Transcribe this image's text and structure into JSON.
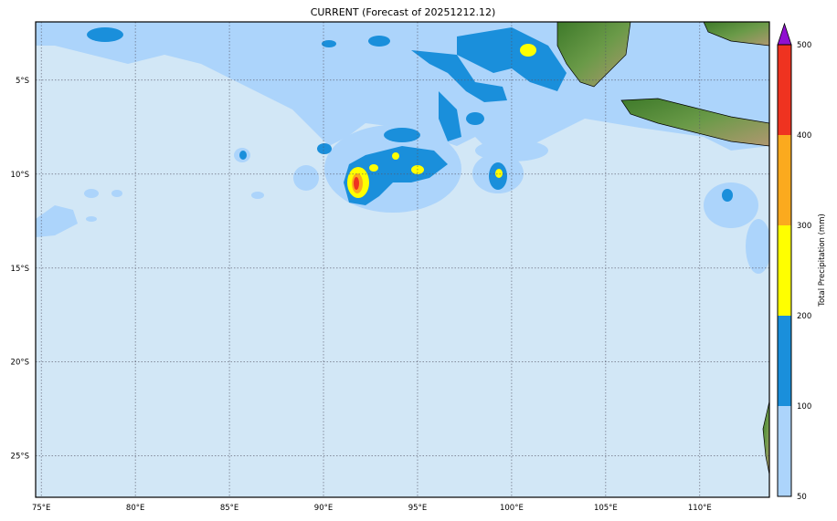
{
  "title": "CURRENT (Forecast of 20251212.12)",
  "map": {
    "lon_range": [
      74.7,
      113.7
    ],
    "lat_range": [
      -27.2,
      -1.9
    ],
    "lon_ticks": [
      {
        "value": 75,
        "label": "75°E"
      },
      {
        "value": 80,
        "label": "80°E"
      },
      {
        "value": 85,
        "label": "85°E"
      },
      {
        "value": 90,
        "label": "90°E"
      },
      {
        "value": 95,
        "label": "95°E"
      },
      {
        "value": 100,
        "label": "100°E"
      },
      {
        "value": 105,
        "label": "105°E"
      },
      {
        "value": 110,
        "label": "110°E"
      }
    ],
    "lat_ticks": [
      {
        "value": -5,
        "label": "5°S"
      },
      {
        "value": -10,
        "label": "10°S"
      },
      {
        "value": -15,
        "label": "15°S"
      },
      {
        "value": -20,
        "label": "20°S"
      },
      {
        "value": -25,
        "label": "25°S"
      }
    ],
    "gridlines": true,
    "ocean_color": "#d2e7f6"
  },
  "colorbar": {
    "label": "Total Precipitation (mm)",
    "levels": [
      {
        "value": 50,
        "label": "50"
      },
      {
        "value": 100,
        "label": "100"
      },
      {
        "value": 200,
        "label": "200"
      },
      {
        "value": 300,
        "label": "300"
      },
      {
        "value": 400,
        "label": "400"
      },
      {
        "value": 500,
        "label": "500"
      }
    ],
    "colors": [
      "#acd4fb",
      "#1a8fdb",
      "#ffff00",
      "#fbaa1e",
      "#ef3320"
    ],
    "extend_color": "#9010d0"
  }
}
